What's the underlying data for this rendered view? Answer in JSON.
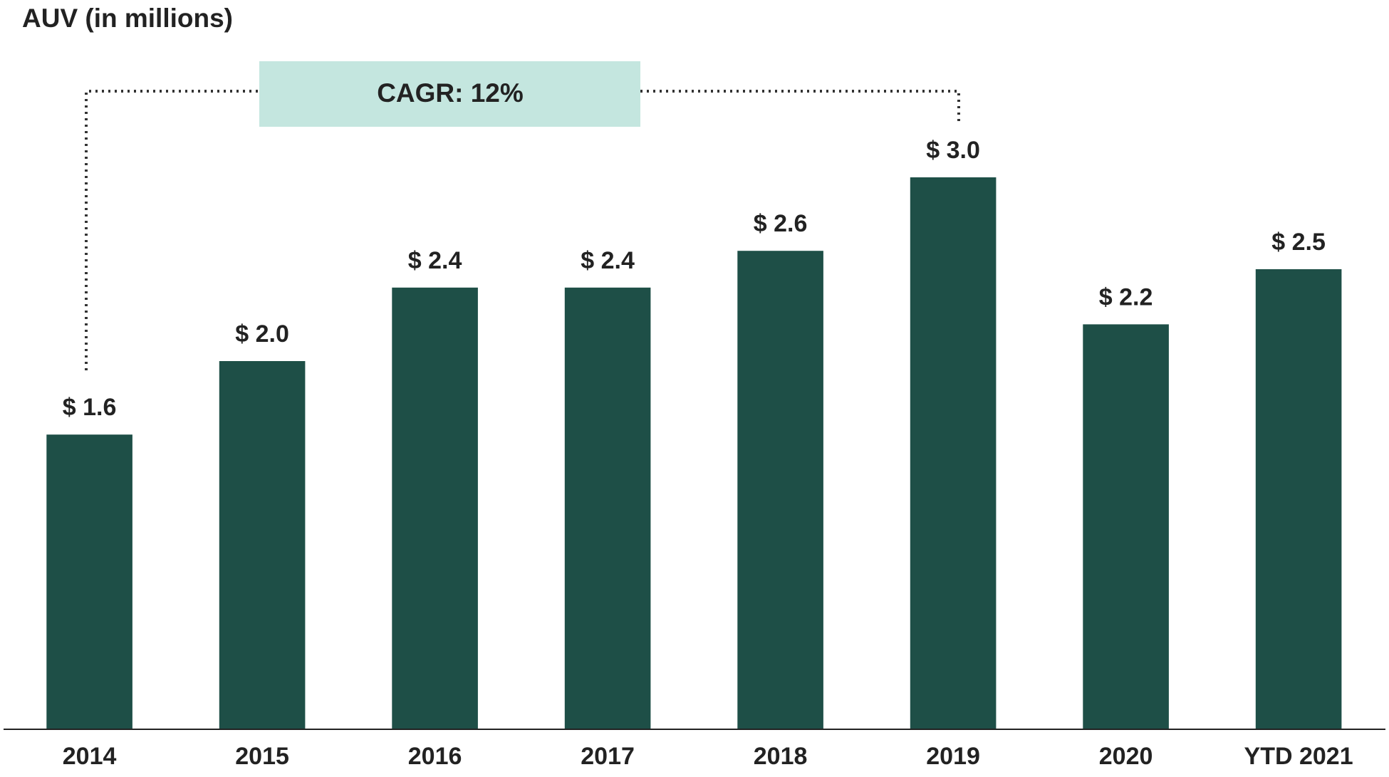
{
  "chart_data": {
    "type": "bar",
    "title": "AUV (in millions)",
    "categories": [
      "2014",
      "2015",
      "2016",
      "2017",
      "2018",
      "2019",
      "2020",
      "YTD 2021"
    ],
    "values": [
      1.6,
      2.0,
      2.4,
      2.4,
      2.6,
      3.0,
      2.2,
      2.5
    ],
    "value_labels": [
      "$ 1.6",
      "$ 2.0",
      "$ 2.4",
      "$ 2.4",
      "$ 2.6",
      "$ 3.0",
      "$ 2.2",
      "$ 2.5"
    ],
    "color": "#1e4f47",
    "annotation": "CAGR: 12%"
  }
}
